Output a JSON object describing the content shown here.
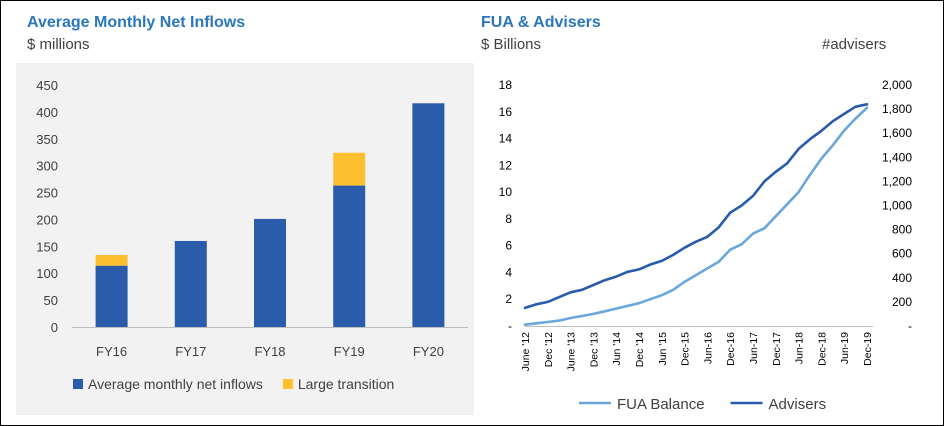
{
  "left_panel": {
    "title": "Average Monthly Net Inflows",
    "subtitle": "$ millions"
  },
  "right_panel": {
    "title": "FUA & Advisers",
    "subtitle_left": "$ Billions",
    "subtitle_right": "#advisers"
  },
  "chart_data": [
    {
      "type": "bar",
      "stacked": true,
      "title": "Average Monthly Net Inflows",
      "ylabel": "$ millions",
      "categories": [
        "FY16",
        "FY17",
        "FY18",
        "FY19",
        "FY20"
      ],
      "ylim": [
        0,
        450
      ],
      "yticks": [
        0,
        50,
        100,
        150,
        200,
        250,
        300,
        350,
        400,
        450
      ],
      "series": [
        {
          "name": "Average monthly net inflows",
          "values": [
            114,
            160,
            201,
            263,
            416
          ],
          "color": "#2b5bab"
        },
        {
          "name": "Large transition",
          "values": [
            20,
            0,
            0,
            61,
            0
          ],
          "color": "#fcbf2d"
        }
      ],
      "legend": "bottom",
      "grid": false
    },
    {
      "type": "line",
      "title": "FUA & Advisers",
      "ylabel": "$ Billions",
      "y2label": "#advisers",
      "ylim": [
        0,
        18
      ],
      "yticks": [
        "-",
        "2",
        "4",
        "6",
        "8",
        "10",
        "12",
        "14",
        "16",
        "18"
      ],
      "y2lim": [
        0,
        2000
      ],
      "y2ticks": [
        "-",
        "200",
        "400",
        "600",
        "800",
        "1,000",
        "1,200",
        "1,400",
        "1,600",
        "1,800",
        "2,000"
      ],
      "xticks": [
        "June '12",
        "Dec '12",
        "June '13",
        "Dec '13",
        "Jun '14",
        "Dec '14",
        "Jun '15",
        "Dec-15",
        "Jun-16",
        "Dec-16",
        "Jun-17",
        "Dec-17",
        "Jun-18",
        "Dec-18",
        "Jun-19",
        "Dec-19"
      ],
      "x": [
        0,
        0.5,
        1,
        1.5,
        2,
        2.5,
        3,
        3.5,
        4,
        4.5,
        5,
        5.5,
        6,
        6.5,
        7,
        7.5,
        8,
        8.5,
        9,
        9.5,
        10,
        10.5,
        11,
        11.5,
        12,
        12.5,
        13,
        13.5,
        14,
        14.5,
        15
      ],
      "series": [
        {
          "name": "FUA Balance",
          "axis": "left",
          "color": "#6aa7dc",
          "values": [
            0.1,
            0.2,
            0.3,
            0.4,
            0.6,
            0.75,
            0.9,
            1.1,
            1.3,
            1.5,
            1.7,
            2.0,
            2.3,
            2.7,
            3.3,
            3.8,
            4.3,
            4.8,
            5.7,
            6.1,
            6.9,
            7.3,
            8.2,
            9.1,
            10.0,
            11.3,
            12.5,
            13.5,
            14.6,
            15.5,
            16.3
          ]
        },
        {
          "name": "Advisers",
          "axis": "right",
          "color": "#2b5bab",
          "values": [
            150,
            180,
            200,
            240,
            280,
            300,
            340,
            380,
            410,
            450,
            470,
            510,
            540,
            590,
            650,
            700,
            740,
            820,
            940,
            1000,
            1080,
            1200,
            1280,
            1350,
            1470,
            1550,
            1620,
            1700,
            1760,
            1820,
            1840
          ]
        }
      ],
      "legend": "bottom",
      "grid": false
    }
  ]
}
